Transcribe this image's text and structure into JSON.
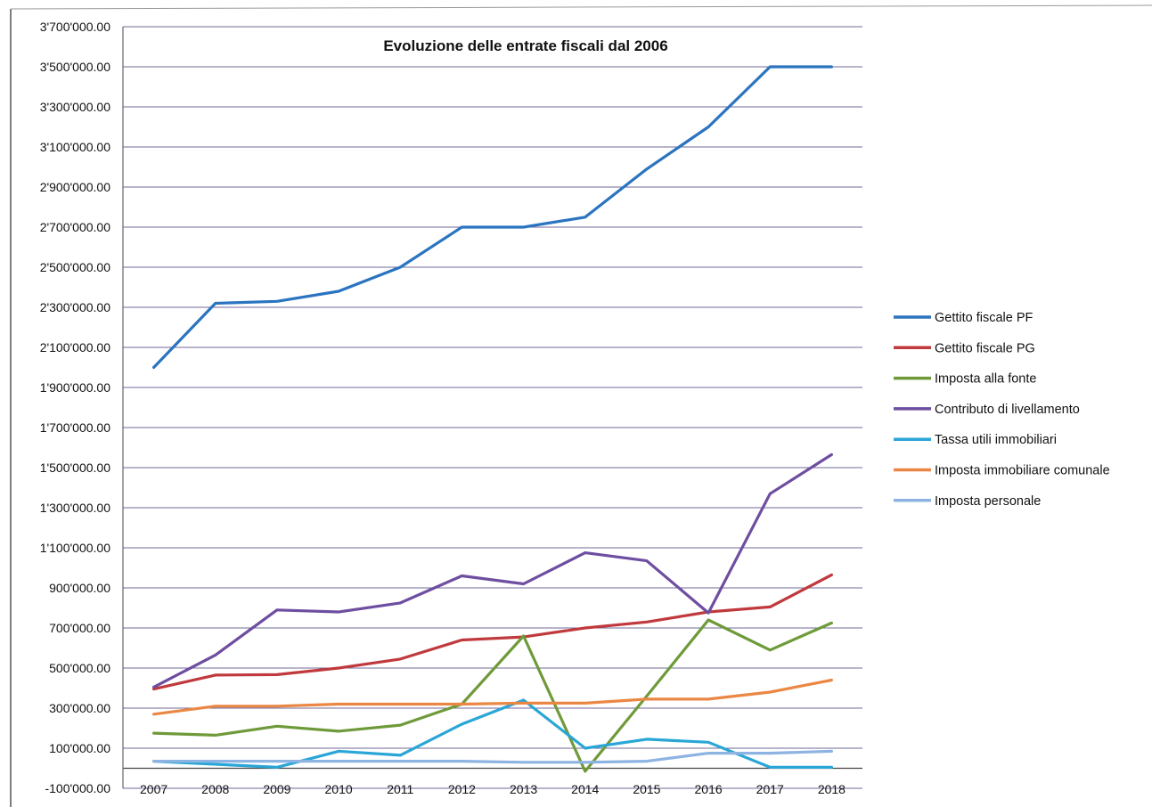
{
  "chart_data": {
    "type": "line",
    "title": "Evoluzione delle entrate fiscali dal 2006",
    "xlabel": "",
    "ylabel": "",
    "categories": [
      "2007",
      "2008",
      "2009",
      "2010",
      "2011",
      "2012",
      "2013",
      "2014",
      "2015",
      "2016",
      "2017",
      "2018"
    ],
    "ylim": [
      -100000,
      3700000
    ],
    "y_ticks": [
      -100000,
      100000,
      300000,
      500000,
      700000,
      900000,
      1100000,
      1300000,
      1500000,
      1700000,
      1900000,
      2100000,
      2300000,
      2500000,
      2700000,
      2900000,
      3100000,
      3300000,
      3500000,
      3700000
    ],
    "y_tick_labels": [
      "-100'000.00",
      "100'000.00",
      "300'000.00",
      "500'000.00",
      "700'000.00",
      "900'000.00",
      "1'100'000.00",
      "1'300'000.00",
      "1'500'000.00",
      "1'700'000.00",
      "1'900'000.00",
      "2'100'000.00",
      "2'300'000.00",
      "2'500'000.00",
      "2'700'000.00",
      "2'900'000.00",
      "3'100'000.00",
      "3'300'000.00",
      "3'500'000.00",
      "3'700'000.00"
    ],
    "grid": true,
    "legend_position": "right",
    "series": [
      {
        "name": "Gettito fiscale PF",
        "color": "#2a74c0",
        "values": [
          2000000,
          2320000,
          2330000,
          2380000,
          2500000,
          2700000,
          2700000,
          2750000,
          2990000,
          3200000,
          3500000,
          3500000
        ]
      },
      {
        "name": "Gettito fiscale PG",
        "color": "#c0393d",
        "values": [
          395000,
          465000,
          467000,
          500000,
          545000,
          640000,
          655000,
          700000,
          730000,
          780000,
          805000,
          965000
        ]
      },
      {
        "name": "Imposta alla fonte",
        "color": "#6f9a3a",
        "values": [
          175000,
          165000,
          210000,
          185000,
          215000,
          320000,
          660000,
          -15000,
          360000,
          740000,
          590000,
          725000
        ]
      },
      {
        "name": "Contributo di livellamento",
        "color": "#6e4ea0",
        "values": [
          405000,
          565000,
          790000,
          780000,
          825000,
          960000,
          920000,
          1075000,
          1035000,
          775000,
          1370000,
          1565000
        ]
      },
      {
        "name": "Tassa utili immobiliari",
        "color": "#2aa6d6",
        "values": [
          35000,
          20000,
          5000,
          85000,
          65000,
          220000,
          340000,
          100000,
          145000,
          130000,
          5000,
          5000
        ]
      },
      {
        "name": "Imposta immobiliare comunale",
        "color": "#eb8744",
        "values": [
          270000,
          310000,
          310000,
          320000,
          320000,
          320000,
          325000,
          325000,
          345000,
          345000,
          380000,
          440000
        ]
      },
      {
        "name": "Imposta personale",
        "color": "#8db3e2",
        "values": [
          35000,
          35000,
          35000,
          35000,
          35000,
          35000,
          30000,
          30000,
          35000,
          75000,
          75000,
          85000
        ]
      }
    ]
  }
}
